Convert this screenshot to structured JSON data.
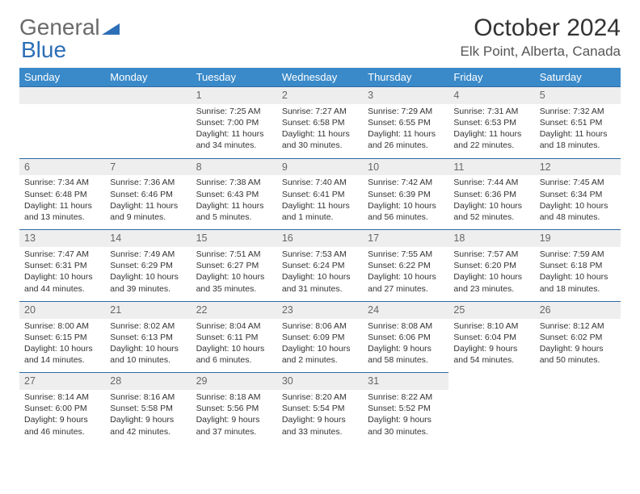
{
  "logo": {
    "part1": "General",
    "part2": "Blue"
  },
  "title": "October 2024",
  "location": "Elk Point, Alberta, Canada",
  "headers": [
    "Sunday",
    "Monday",
    "Tuesday",
    "Wednesday",
    "Thursday",
    "Friday",
    "Saturday"
  ],
  "colors": {
    "header_bg": "#3a8ac9",
    "header_text": "#ffffff",
    "daynum_bg": "#eeeeee",
    "day_border": "#2c6aa6",
    "logo_gray": "#6a6a6a",
    "logo_blue": "#2d6fb6"
  },
  "firstDayIndex": 2,
  "daysInMonth": 31,
  "days": {
    "1": {
      "sunrise": "Sunrise: 7:25 AM",
      "sunset": "Sunset: 7:00 PM",
      "daylight": "Daylight: 11 hours and 34 minutes."
    },
    "2": {
      "sunrise": "Sunrise: 7:27 AM",
      "sunset": "Sunset: 6:58 PM",
      "daylight": "Daylight: 11 hours and 30 minutes."
    },
    "3": {
      "sunrise": "Sunrise: 7:29 AM",
      "sunset": "Sunset: 6:55 PM",
      "daylight": "Daylight: 11 hours and 26 minutes."
    },
    "4": {
      "sunrise": "Sunrise: 7:31 AM",
      "sunset": "Sunset: 6:53 PM",
      "daylight": "Daylight: 11 hours and 22 minutes."
    },
    "5": {
      "sunrise": "Sunrise: 7:32 AM",
      "sunset": "Sunset: 6:51 PM",
      "daylight": "Daylight: 11 hours and 18 minutes."
    },
    "6": {
      "sunrise": "Sunrise: 7:34 AM",
      "sunset": "Sunset: 6:48 PM",
      "daylight": "Daylight: 11 hours and 13 minutes."
    },
    "7": {
      "sunrise": "Sunrise: 7:36 AM",
      "sunset": "Sunset: 6:46 PM",
      "daylight": "Daylight: 11 hours and 9 minutes."
    },
    "8": {
      "sunrise": "Sunrise: 7:38 AM",
      "sunset": "Sunset: 6:43 PM",
      "daylight": "Daylight: 11 hours and 5 minutes."
    },
    "9": {
      "sunrise": "Sunrise: 7:40 AM",
      "sunset": "Sunset: 6:41 PM",
      "daylight": "Daylight: 11 hours and 1 minute."
    },
    "10": {
      "sunrise": "Sunrise: 7:42 AM",
      "sunset": "Sunset: 6:39 PM",
      "daylight": "Daylight: 10 hours and 56 minutes."
    },
    "11": {
      "sunrise": "Sunrise: 7:44 AM",
      "sunset": "Sunset: 6:36 PM",
      "daylight": "Daylight: 10 hours and 52 minutes."
    },
    "12": {
      "sunrise": "Sunrise: 7:45 AM",
      "sunset": "Sunset: 6:34 PM",
      "daylight": "Daylight: 10 hours and 48 minutes."
    },
    "13": {
      "sunrise": "Sunrise: 7:47 AM",
      "sunset": "Sunset: 6:31 PM",
      "daylight": "Daylight: 10 hours and 44 minutes."
    },
    "14": {
      "sunrise": "Sunrise: 7:49 AM",
      "sunset": "Sunset: 6:29 PM",
      "daylight": "Daylight: 10 hours and 39 minutes."
    },
    "15": {
      "sunrise": "Sunrise: 7:51 AM",
      "sunset": "Sunset: 6:27 PM",
      "daylight": "Daylight: 10 hours and 35 minutes."
    },
    "16": {
      "sunrise": "Sunrise: 7:53 AM",
      "sunset": "Sunset: 6:24 PM",
      "daylight": "Daylight: 10 hours and 31 minutes."
    },
    "17": {
      "sunrise": "Sunrise: 7:55 AM",
      "sunset": "Sunset: 6:22 PM",
      "daylight": "Daylight: 10 hours and 27 minutes."
    },
    "18": {
      "sunrise": "Sunrise: 7:57 AM",
      "sunset": "Sunset: 6:20 PM",
      "daylight": "Daylight: 10 hours and 23 minutes."
    },
    "19": {
      "sunrise": "Sunrise: 7:59 AM",
      "sunset": "Sunset: 6:18 PM",
      "daylight": "Daylight: 10 hours and 18 minutes."
    },
    "20": {
      "sunrise": "Sunrise: 8:00 AM",
      "sunset": "Sunset: 6:15 PM",
      "daylight": "Daylight: 10 hours and 14 minutes."
    },
    "21": {
      "sunrise": "Sunrise: 8:02 AM",
      "sunset": "Sunset: 6:13 PM",
      "daylight": "Daylight: 10 hours and 10 minutes."
    },
    "22": {
      "sunrise": "Sunrise: 8:04 AM",
      "sunset": "Sunset: 6:11 PM",
      "daylight": "Daylight: 10 hours and 6 minutes."
    },
    "23": {
      "sunrise": "Sunrise: 8:06 AM",
      "sunset": "Sunset: 6:09 PM",
      "daylight": "Daylight: 10 hours and 2 minutes."
    },
    "24": {
      "sunrise": "Sunrise: 8:08 AM",
      "sunset": "Sunset: 6:06 PM",
      "daylight": "Daylight: 9 hours and 58 minutes."
    },
    "25": {
      "sunrise": "Sunrise: 8:10 AM",
      "sunset": "Sunset: 6:04 PM",
      "daylight": "Daylight: 9 hours and 54 minutes."
    },
    "26": {
      "sunrise": "Sunrise: 8:12 AM",
      "sunset": "Sunset: 6:02 PM",
      "daylight": "Daylight: 9 hours and 50 minutes."
    },
    "27": {
      "sunrise": "Sunrise: 8:14 AM",
      "sunset": "Sunset: 6:00 PM",
      "daylight": "Daylight: 9 hours and 46 minutes."
    },
    "28": {
      "sunrise": "Sunrise: 8:16 AM",
      "sunset": "Sunset: 5:58 PM",
      "daylight": "Daylight: 9 hours and 42 minutes."
    },
    "29": {
      "sunrise": "Sunrise: 8:18 AM",
      "sunset": "Sunset: 5:56 PM",
      "daylight": "Daylight: 9 hours and 37 minutes."
    },
    "30": {
      "sunrise": "Sunrise: 8:20 AM",
      "sunset": "Sunset: 5:54 PM",
      "daylight": "Daylight: 9 hours and 33 minutes."
    },
    "31": {
      "sunrise": "Sunrise: 8:22 AM",
      "sunset": "Sunset: 5:52 PM",
      "daylight": "Daylight: 9 hours and 30 minutes."
    }
  }
}
